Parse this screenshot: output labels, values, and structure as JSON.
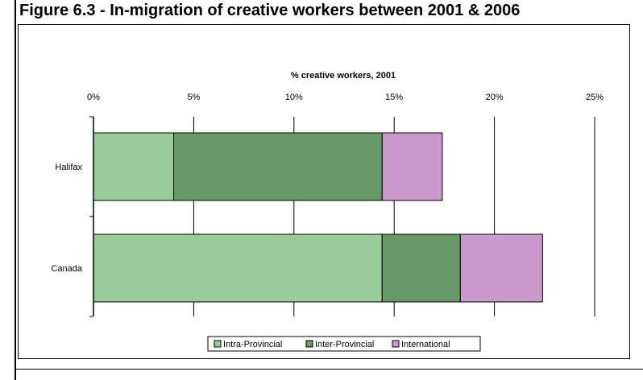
{
  "figure": {
    "title": "Figure 6.3 - In-migration of creative workers between 2001 & 2006"
  },
  "chart_data": {
    "type": "bar",
    "orientation": "horizontal",
    "stacked": true,
    "xlabel": "% creative workers, 2001",
    "xlim": [
      0,
      25
    ],
    "x_ticks": [
      "0%",
      "5%",
      "10%",
      "15%",
      "20%",
      "25%"
    ],
    "grid": "vertical",
    "legend_position": "bottom",
    "categories": [
      "Halifax",
      "Canada"
    ],
    "series": [
      {
        "name": "Intra-Provincial",
        "color": "#99cc99",
        "values": [
          4.0,
          14.4
        ]
      },
      {
        "name": "Inter-Provincial",
        "color": "#669966",
        "values": [
          10.4,
          3.9
        ]
      },
      {
        "name": "International",
        "color": "#cc99cc",
        "values": [
          3.0,
          4.1
        ]
      }
    ]
  }
}
